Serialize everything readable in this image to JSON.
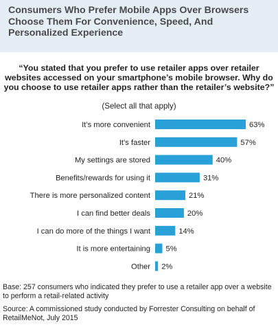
{
  "chart_data": {
    "type": "bar",
    "orientation": "horizontal",
    "title": "Consumers Who Prefer Mobile Apps Over Browsers Choose Them For Convenience, Speed, And Personalized Experience",
    "question": "“You stated that you prefer to use retailer apps over retailer websites accessed on your smartphone’s mobile browser. Why do you choose to use retailer apps rather than the retailer’s website?”",
    "instruction": "(Select all that apply)",
    "categories": [
      "It’s more convenient",
      "It’s faster",
      "My settings are stored",
      "Benefits/rewards for using it",
      "There is more personalized content",
      "I can find better deals",
      "I can do more of the things I want",
      "It is more entertaining",
      "Other"
    ],
    "values": [
      63,
      57,
      40,
      31,
      21,
      20,
      14,
      5,
      2
    ],
    "value_labels": [
      "63%",
      "57%",
      "40%",
      "31%",
      "21%",
      "20%",
      "14%",
      "5%",
      "2%"
    ],
    "xlim": [
      0,
      63
    ],
    "grid": false,
    "bar_color": "#2aa0d8"
  },
  "notes": {
    "base": "Base: 257 consumers who indicated they prefer to use a retailer app over a website to perform a retail-related activity",
    "source": "Source: A commissioned study conducted by Forrester Consulting on behalf of RetailMeNot, July 2015"
  },
  "colors": {
    "header_background": "#e4eef4",
    "bar": "#2aa0d8"
  }
}
